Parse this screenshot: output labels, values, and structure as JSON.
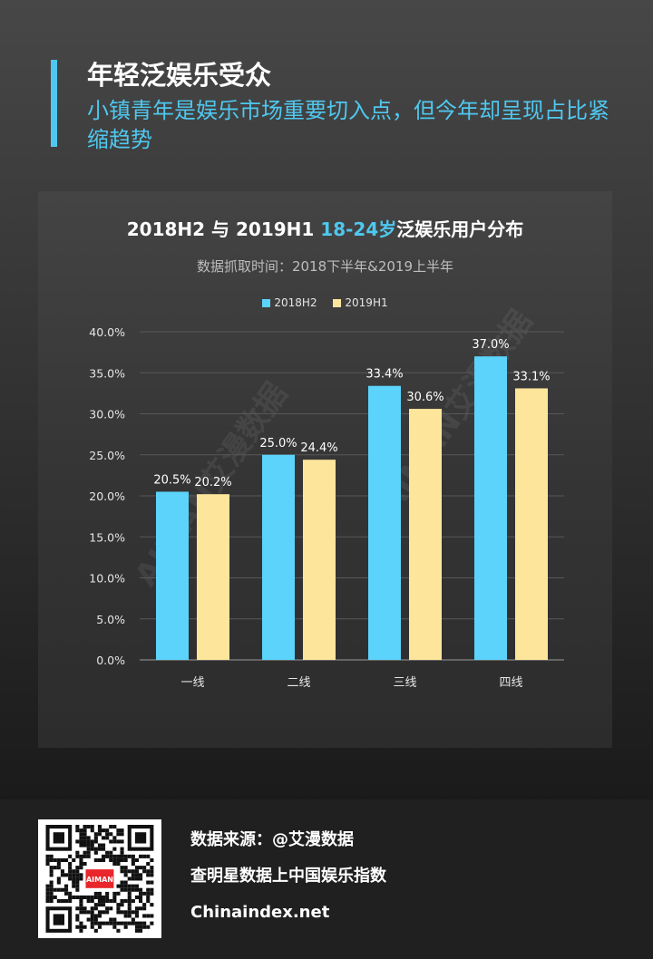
{
  "header": {
    "title": "年轻泛娱乐受众",
    "subtitle": "小镇青年是娱乐市场重要切入点，但今年却呈现占比紧缩趋势"
  },
  "chart_data": {
    "type": "bar",
    "title_prefix": "2018H2 与 2019H1 ",
    "title_highlight": "18-24岁",
    "title_suffix": "泛娱乐用户分布",
    "subtitle": "数据抓取时间：2018下半年&2019上半年",
    "categories": [
      "一线",
      "二线",
      "三线",
      "四线"
    ],
    "series": [
      {
        "name": "2018H2",
        "values": [
          20.5,
          25.0,
          33.4,
          37.0
        ],
        "labels": [
          "20.5%",
          "25.0%",
          "33.4%",
          "37.0%"
        ],
        "color": "#5cd3fb"
      },
      {
        "name": "2019H1",
        "values": [
          20.2,
          24.4,
          30.6,
          33.1
        ],
        "labels": [
          "20.2%",
          "24.4%",
          "30.6%",
          "33.1%"
        ],
        "color": "#fee59c"
      }
    ],
    "ylim": [
      0,
      40
    ],
    "y_ticks": [
      "0.0%",
      "5.0%",
      "10.0%",
      "15.0%",
      "20.0%",
      "25.0%",
      "30.0%",
      "35.0%",
      "40.0%"
    ],
    "grid": true,
    "legend_position": "top-center",
    "watermark": "AIMAN艾漫数据"
  },
  "footer": {
    "qr_logo": "AIMAN",
    "source": "数据来源：@艾漫数据",
    "tagline": "查明星数据上中国娱乐指数",
    "site": "Chinaindex.net"
  },
  "colors": {
    "accent": "#4fc8ef",
    "series_a": "#5cd3fb",
    "series_b": "#fee59c"
  }
}
